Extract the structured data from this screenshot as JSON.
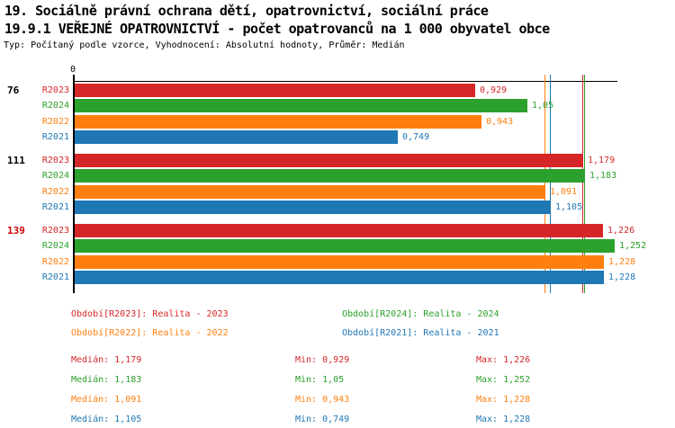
{
  "header": {
    "line1": "19. Sociálně právní ochrana dětí, opatrovnictví, sociální práce",
    "line2": "19.9.1 VEŘEJNÉ OPATROVNICTVÍ - počet opatrovanců na 1 000 obyvatel obce",
    "subtitle": "Typ: Počítaný podle vzorce, Vyhodnocení: Absolutní hodnoty, Průměr: Medián"
  },
  "chart_data": {
    "type": "bar",
    "orientation": "horizontal",
    "axis": {
      "zero_label": "0",
      "xmin": 0,
      "xmax_approx": 1.26,
      "grid": false
    },
    "median_lines_shown": true,
    "groups": [
      {
        "label": "76",
        "label_color": "#000000"
      },
      {
        "label": "111",
        "label_color": "#000000"
      },
      {
        "label": "139",
        "label_color": "#cc0000"
      }
    ],
    "series": [
      {
        "name": "R2023",
        "color": "#d62728",
        "values": [
          0.929,
          1.179,
          1.226
        ],
        "value_labels": [
          "0,929",
          "1,179",
          "1,226"
        ],
        "median": 1.179
      },
      {
        "name": "R2024",
        "color": "#2ca02c",
        "values": [
          1.05,
          1.183,
          1.252
        ],
        "value_labels": [
          "1,05",
          "1,183",
          "1,252"
        ],
        "median": 1.183
      },
      {
        "name": "R2022",
        "color": "#ff7f0e",
        "values": [
          0.943,
          1.091,
          1.228
        ],
        "value_labels": [
          "0,943",
          "1,091",
          "1,228"
        ],
        "median": 1.091
      },
      {
        "name": "R2021",
        "color": "#1f77b4",
        "values": [
          0.749,
          1.105,
          1.228
        ],
        "value_labels": [
          "0,749",
          "1,105",
          "1,228"
        ],
        "median": 1.105
      }
    ]
  },
  "legend": {
    "items": [
      {
        "label": "Období[R2023]: Realita - 2023",
        "color": "#d62728",
        "row": 0,
        "col": 0
      },
      {
        "label": "Období[R2024]: Realita - 2024",
        "color": "#2ca02c",
        "row": 0,
        "col": 1
      },
      {
        "label": "Období[R2022]: Realita - 2022",
        "color": "#ff7f0e",
        "row": 1,
        "col": 0
      },
      {
        "label": "Období[R2021]: Realita - 2021",
        "color": "#1f77b4",
        "row": 1,
        "col": 1
      }
    ]
  },
  "stats": {
    "rows": [
      {
        "color": "#d62728",
        "median": "Medián: 1,179",
        "min": "Min: 0,929",
        "max": "Max: 1,226"
      },
      {
        "color": "#2ca02c",
        "median": "Medián: 1,183",
        "min": "Min: 1,05",
        "max": "Max: 1,252"
      },
      {
        "color": "#ff7f0e",
        "median": "Medián: 1,091",
        "min": "Min: 0,943",
        "max": "Max: 1,228"
      },
      {
        "color": "#1f77b4",
        "median": "Medián: 1,105",
        "min": "Min: 0,749",
        "max": "Max: 1,228"
      }
    ]
  }
}
